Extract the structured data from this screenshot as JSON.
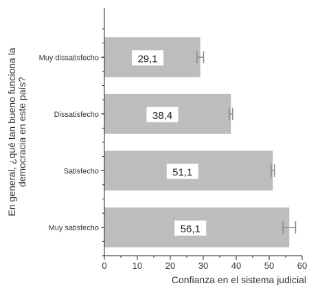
{
  "chart_data": {
    "type": "bar",
    "orientation": "horizontal",
    "categories": [
      "Muy dissatisfecho",
      "Dissatisfecho",
      "Satisfecho",
      "Muy satisfecho"
    ],
    "values": [
      29.1,
      38.4,
      51.1,
      56.1
    ],
    "data_labels": [
      "29,1",
      "38,4",
      "51,1",
      "56,1"
    ],
    "error_bars": [
      [
        28.1,
        30.1
      ],
      [
        37.9,
        38.9
      ],
      [
        50.6,
        51.6
      ],
      [
        54.2,
        58.0
      ]
    ],
    "xlabel": "Confianza en el sistema judicial",
    "ylabel_lines": [
      "En general, ¿qué tan bueno funciona la",
      "democracia en este país?"
    ],
    "xlim": [
      0,
      60
    ],
    "xticks": [
      0,
      10,
      20,
      30,
      40,
      50,
      60
    ],
    "grid": false,
    "legend": "none",
    "colors": {
      "bar": "#bdbdbd",
      "error_bar": "#8a8a8a",
      "axis": "#222222",
      "label_box": "#ffffff"
    }
  }
}
